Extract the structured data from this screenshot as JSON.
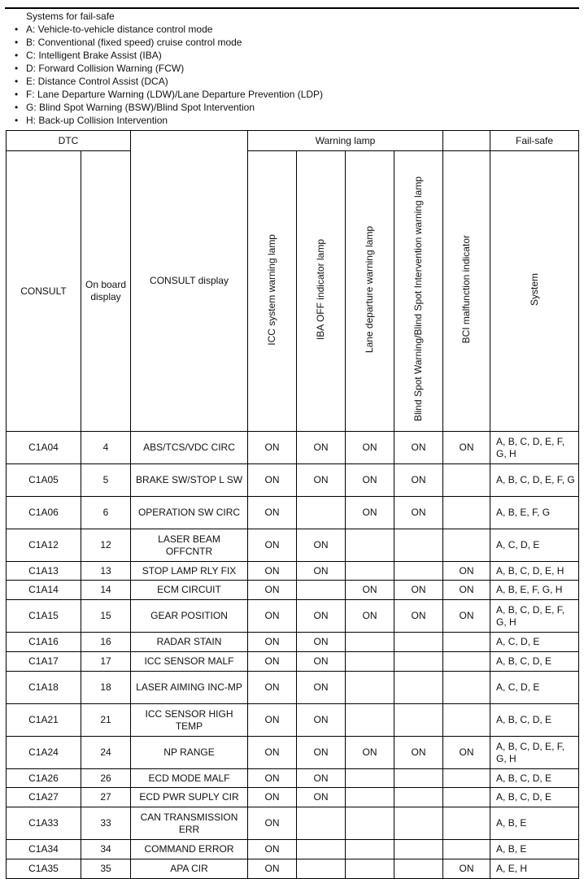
{
  "intro": {
    "title": "Systems for fail-safe",
    "items": [
      "A: Vehicle-to-vehicle distance control mode",
      "B: Conventional (fixed speed) cruise control mode",
      "C: Intelligent Brake Assist (IBA)",
      "D: Forward Collision Warning (FCW)",
      "E: Distance Control Assist (DCA)",
      "F: Lane Departure Warning (LDW)/Lane Departure Prevention (LDP)",
      "G: Blind Spot Warning (BSW)/Blind Spot Intervention",
      "H: Back-up Collision Intervention"
    ]
  },
  "headers": {
    "dtc": "DTC",
    "warning_lamp": "Warning lamp",
    "fail_safe": "Fail-safe",
    "consult": "CONSULT",
    "on_board": "On board display",
    "consult_display": "CONSULT display",
    "icc": "ICC system warning lamp",
    "iba": "IBA OFF indicator lamp",
    "lane": "Lane departure warning lamp",
    "bsw": "Blind Spot Warning/Blind Spot Intervention warning lamp",
    "bci": "BCI malfunction indicator",
    "system": "System"
  },
  "rows": [
    {
      "consult": "C1A04",
      "onboard": "4",
      "display": "ABS/TCS/VDC CIRC",
      "icc": "ON",
      "iba": "ON",
      "lane": "ON",
      "bsw": "ON",
      "bci": "ON",
      "system": "A, B, C, D, E, F, G, H"
    },
    {
      "consult": "C1A05",
      "onboard": "5",
      "display": "BRAKE SW/STOP L SW",
      "icc": "ON",
      "iba": "ON",
      "lane": "ON",
      "bsw": "ON",
      "bci": "",
      "system": "A, B, C, D, E, F, G"
    },
    {
      "consult": "C1A06",
      "onboard": "6",
      "display": "OPERATION SW CIRC",
      "icc": "ON",
      "iba": "",
      "lane": "ON",
      "bsw": "ON",
      "bci": "",
      "system": "A, B, E, F, G"
    },
    {
      "consult": "C1A12",
      "onboard": "12",
      "display": "LASER BEAM OFFCNTR",
      "icc": "ON",
      "iba": "ON",
      "lane": "",
      "bsw": "",
      "bci": "",
      "system": "A, C, D, E"
    },
    {
      "consult": "C1A13",
      "onboard": "13",
      "display": "STOP LAMP RLY FIX",
      "icc": "ON",
      "iba": "ON",
      "lane": "",
      "bsw": "",
      "bci": "ON",
      "system": "A, B, C, D, E, H"
    },
    {
      "consult": "C1A14",
      "onboard": "14",
      "display": "ECM CIRCUIT",
      "icc": "ON",
      "iba": "",
      "lane": "ON",
      "bsw": "ON",
      "bci": "ON",
      "system": "A, B, E, F, G, H"
    },
    {
      "consult": "C1A15",
      "onboard": "15",
      "display": "GEAR POSITION",
      "icc": "ON",
      "iba": "ON",
      "lane": "ON",
      "bsw": "ON",
      "bci": "ON",
      "system": "A, B, C, D, E, F, G, H"
    },
    {
      "consult": "C1A16",
      "onboard": "16",
      "display": "RADAR STAIN",
      "icc": "ON",
      "iba": "ON",
      "lane": "",
      "bsw": "",
      "bci": "",
      "system": "A, C, D, E"
    },
    {
      "consult": "C1A17",
      "onboard": "17",
      "display": "ICC SENSOR MALF",
      "icc": "ON",
      "iba": "ON",
      "lane": "",
      "bsw": "",
      "bci": "",
      "system": "A, B, C, D, E"
    },
    {
      "consult": "C1A18",
      "onboard": "18",
      "display": "LASER AIMING INC-MP",
      "icc": "ON",
      "iba": "ON",
      "lane": "",
      "bsw": "",
      "bci": "",
      "system": "A, C, D, E"
    },
    {
      "consult": "C1A21",
      "onboard": "21",
      "display": "ICC SENSOR HIGH TEMP",
      "icc": "ON",
      "iba": "ON",
      "lane": "",
      "bsw": "",
      "bci": "",
      "system": "A, B, C, D, E"
    },
    {
      "consult": "C1A24",
      "onboard": "24",
      "display": "NP RANGE",
      "icc": "ON",
      "iba": "ON",
      "lane": "ON",
      "bsw": "ON",
      "bci": "ON",
      "system": "A, B, C, D, E, F, G, H"
    },
    {
      "consult": "C1A26",
      "onboard": "26",
      "display": "ECD MODE MALF",
      "icc": "ON",
      "iba": "ON",
      "lane": "",
      "bsw": "",
      "bci": "",
      "system": "A, B, C, D, E"
    },
    {
      "consult": "C1A27",
      "onboard": "27",
      "display": "ECD PWR SUPLY CIR",
      "icc": "ON",
      "iba": "ON",
      "lane": "",
      "bsw": "",
      "bci": "",
      "system": "A, B, C, D, E"
    },
    {
      "consult": "C1A33",
      "onboard": "33",
      "display": "CAN TRANSMISSION ERR",
      "icc": "ON",
      "iba": "",
      "lane": "",
      "bsw": "",
      "bci": "",
      "system": "A, B, E"
    },
    {
      "consult": "C1A34",
      "onboard": "34",
      "display": "COMMAND ERROR",
      "icc": "ON",
      "iba": "",
      "lane": "",
      "bsw": "",
      "bci": "",
      "system": "A, B, E"
    },
    {
      "consult": "C1A35",
      "onboard": "35",
      "display": "APA CIR",
      "icc": "ON",
      "iba": "",
      "lane": "",
      "bsw": "",
      "bci": "ON",
      "system": "A, E, H"
    }
  ]
}
